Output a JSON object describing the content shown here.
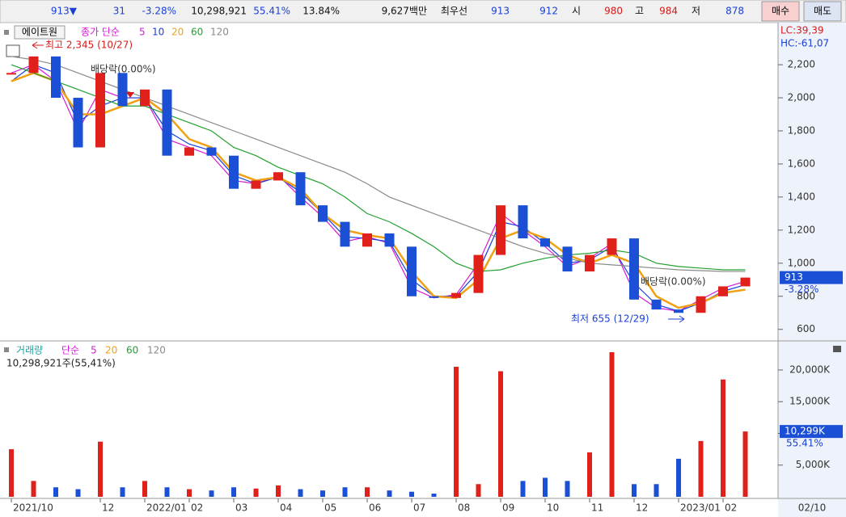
{
  "toolbar": {
    "items": [
      {
        "text": "913▼",
        "color": "#1a3fd6"
      },
      {
        "text": "31",
        "color": "#1a3fd6"
      },
      {
        "text": "-3.28%",
        "color": "#1a3fd6"
      },
      {
        "text": "10,298,921",
        "color": "#111111"
      },
      {
        "text": "55.41%",
        "color": "#1a3fd6"
      },
      {
        "text": "13.84%",
        "color": "#111111"
      },
      {
        "text": "9,627백만",
        "color": "#111111"
      },
      {
        "text": "최우선",
        "color": "#111111"
      },
      {
        "text": "913",
        "color": "#1a3fd6"
      },
      {
        "text": "912",
        "color": "#1a3fd6"
      },
      {
        "text": "시",
        "color": "#111111"
      },
      {
        "text": "980",
        "color": "#d61a1a"
      },
      {
        "text": "고",
        "color": "#111111"
      },
      {
        "text": "984",
        "color": "#d61a1a"
      },
      {
        "text": "저",
        "color": "#111111"
      },
      {
        "text": "878",
        "color": "#1a3fd6"
      }
    ],
    "buttons": [
      "매수",
      "매도"
    ]
  },
  "chart_data": [
    {
      "type": "candlestick",
      "title": "에이트원",
      "legend_prefix": "종가 단순",
      "categories": [
        "2021/10",
        null,
        null,
        null,
        "12",
        null,
        "2022/01",
        null,
        "02",
        null,
        "03",
        null,
        "04",
        null,
        "05",
        null,
        "06",
        null,
        "07",
        null,
        "08",
        null,
        "09",
        null,
        "10",
        null,
        "11",
        null,
        "12",
        null,
        "2023/01",
        null,
        "02",
        null
      ],
      "last_date": "02/10",
      "close": {
        "values": [
          2150,
          2250,
          2000,
          1700,
          2150,
          1950,
          2050,
          1650,
          1700,
          1650,
          1450,
          1500,
          1550,
          1350,
          1250,
          1100,
          1180,
          1100,
          800,
          790,
          820,
          1050,
          1350,
          1150,
          1100,
          950,
          1050,
          1150,
          780,
          720,
          700,
          800,
          860,
          913
        ],
        "up_color": "#e0201a",
        "down_color": "#1a4fd6"
      },
      "series": [
        {
          "name": "5",
          "color": "#d81ad8",
          "values": [
            2150,
            2200,
            2100,
            1800,
            2050,
            2000,
            2000,
            1750,
            1700,
            1650,
            1500,
            1480,
            1530,
            1400,
            1280,
            1130,
            1160,
            1120,
            850,
            790,
            810,
            1000,
            1300,
            1200,
            1100,
            980,
            1030,
            1120,
            820,
            730,
            710,
            780,
            850,
            890
          ]
        },
        {
          "name": "10",
          "color": "#1a3fd6",
          "values": [
            2100,
            2200,
            2150,
            1850,
            1950,
            2000,
            2000,
            1800,
            1720,
            1680,
            1530,
            1480,
            1520,
            1430,
            1300,
            1160,
            1150,
            1130,
            900,
            800,
            800,
            950,
            1250,
            1220,
            1120,
            1000,
            1020,
            1100,
            880,
            750,
            710,
            760,
            830,
            870
          ]
        },
        {
          "name": "20",
          "color": "#f0a010",
          "values": [
            2100,
            2150,
            2100,
            1900,
            1900,
            1950,
            2000,
            1900,
            1750,
            1700,
            1550,
            1500,
            1520,
            1450,
            1300,
            1200,
            1170,
            1150,
            950,
            800,
            790,
            900,
            1150,
            1200,
            1150,
            1050,
            1000,
            1050,
            1000,
            800,
            730,
            760,
            820,
            840
          ]
        },
        {
          "name": "60",
          "color": "#22a030",
          "values": [
            2200,
            2150,
            2100,
            2050,
            2000,
            1950,
            1950,
            1900,
            1850,
            1800,
            1700,
            1650,
            1580,
            1530,
            1480,
            1400,
            1300,
            1250,
            1180,
            1100,
            1000,
            950,
            960,
            1000,
            1030,
            1050,
            1060,
            1080,
            1060,
            1000,
            980,
            970,
            960,
            960
          ]
        },
        {
          "name": "120",
          "color": "#8a8a8a",
          "values": [
            2250,
            2230,
            2200,
            2150,
            2100,
            2050,
            2000,
            1950,
            1900,
            1850,
            1800,
            1750,
            1700,
            1650,
            1600,
            1550,
            1480,
            1400,
            1350,
            1300,
            1250,
            1200,
            1150,
            1100,
            1060,
            1030,
            1000,
            990,
            980,
            970,
            960,
            955,
            950,
            950
          ]
        }
      ],
      "ylim": [
        540,
        2430
      ],
      "yticks": [
        600,
        800,
        {
          "value": 1000,
          "label": "1,000"
        },
        {
          "value": 1200,
          "label": "1,200"
        },
        {
          "value": 1400,
          "label": "1,400"
        },
        {
          "value": 1600,
          "label": "1,600"
        },
        {
          "value": 1800,
          "label": "1,800"
        },
        {
          "value": 2000,
          "label": "2,000"
        },
        {
          "value": 2200,
          "label": "2,200"
        }
      ],
      "annotations": {
        "high": "최고 2,345 (10/27)",
        "low": "최저 655 (12/29)",
        "dividend_1": "배당락(0.00%)",
        "dividend_2": "배당락(0.00%)",
        "lc": "LC:39,39",
        "hc": "HC:-61,07"
      }
    },
    {
      "type": "bar",
      "title": "거래량",
      "legend_prefix": "단순",
      "ma_legend": [
        {
          "name": "5",
          "color": "#d81ad8"
        },
        {
          "name": "20",
          "color": "#f0a010"
        },
        {
          "name": "60",
          "color": "#22a030"
        },
        {
          "name": "120",
          "color": "#8a8a8a"
        }
      ],
      "subtitle": "10,298,921주(55,41%)",
      "values": [
        7500,
        2500,
        1500,
        1200,
        8700,
        1500,
        2500,
        1500,
        1200,
        1000,
        1500,
        1300,
        1800,
        1200,
        1000,
        1500,
        1500,
        1000,
        800,
        500,
        20500,
        2000,
        19800,
        2500,
        3000,
        2500,
        7000,
        22800,
        2000,
        2000,
        6000,
        8800,
        18500,
        10299
      ],
      "last_label": "10,299K",
      "last_pct": "55.41%",
      "ylim": [
        0,
        24200
      ],
      "yticks": [
        {
          "value": 5000,
          "label": "5,000K"
        },
        {
          "value": 10000,
          "label": "10,000K"
        },
        {
          "value": 15000,
          "label": "15,000K"
        },
        {
          "value": 20000,
          "label": "20,000K"
        }
      ]
    }
  ]
}
